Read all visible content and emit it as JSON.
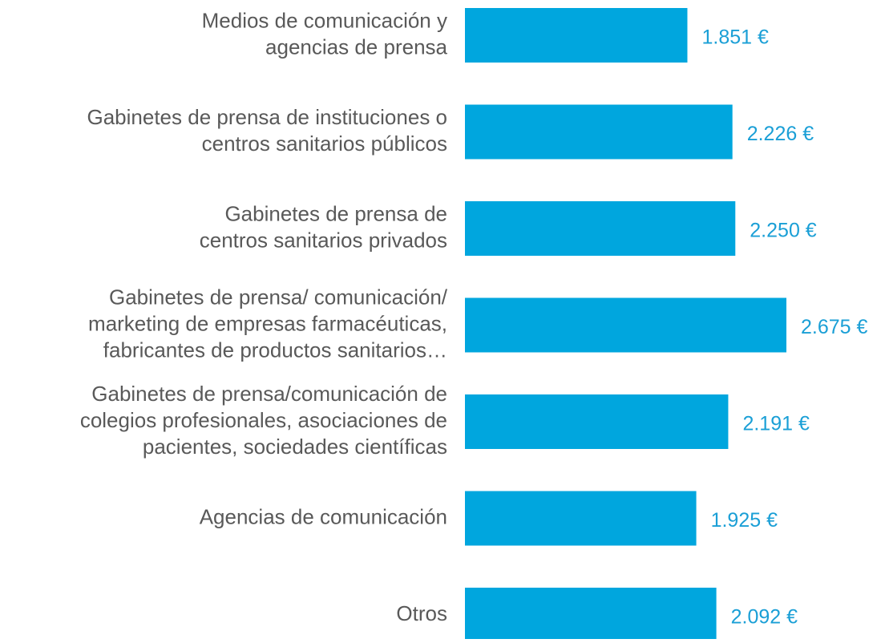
{
  "chart_data": {
    "type": "bar",
    "orientation": "horizontal",
    "color": "#00a6de",
    "label_color": "#1a9fd6",
    "categories": [
      "Medios de comunicación y\nagencias de prensa",
      "Gabinetes de prensa de instituciones o\ncentros sanitarios públicos",
      "Gabinetes de prensa de\ncentros sanitarios privados",
      "Gabinetes de prensa/ comunicación/\nmarketing de empresas farmacéuticas,\nfabricantes de productos sanitarios…",
      "Gabinetes de prensa/comunicación de\ncolegios profesionales, asociaciones de\npacientes, sociedades científicas",
      "Agencias de comunicación",
      "Otros"
    ],
    "values": [
      1851,
      2226,
      2250,
      2675,
      2191,
      1925,
      2092
    ],
    "value_labels": [
      "1.851 €",
      "2.226 €",
      "2.250 €",
      "2.675 €",
      "2.191 €",
      "1.925 €",
      "2.092 €"
    ]
  }
}
